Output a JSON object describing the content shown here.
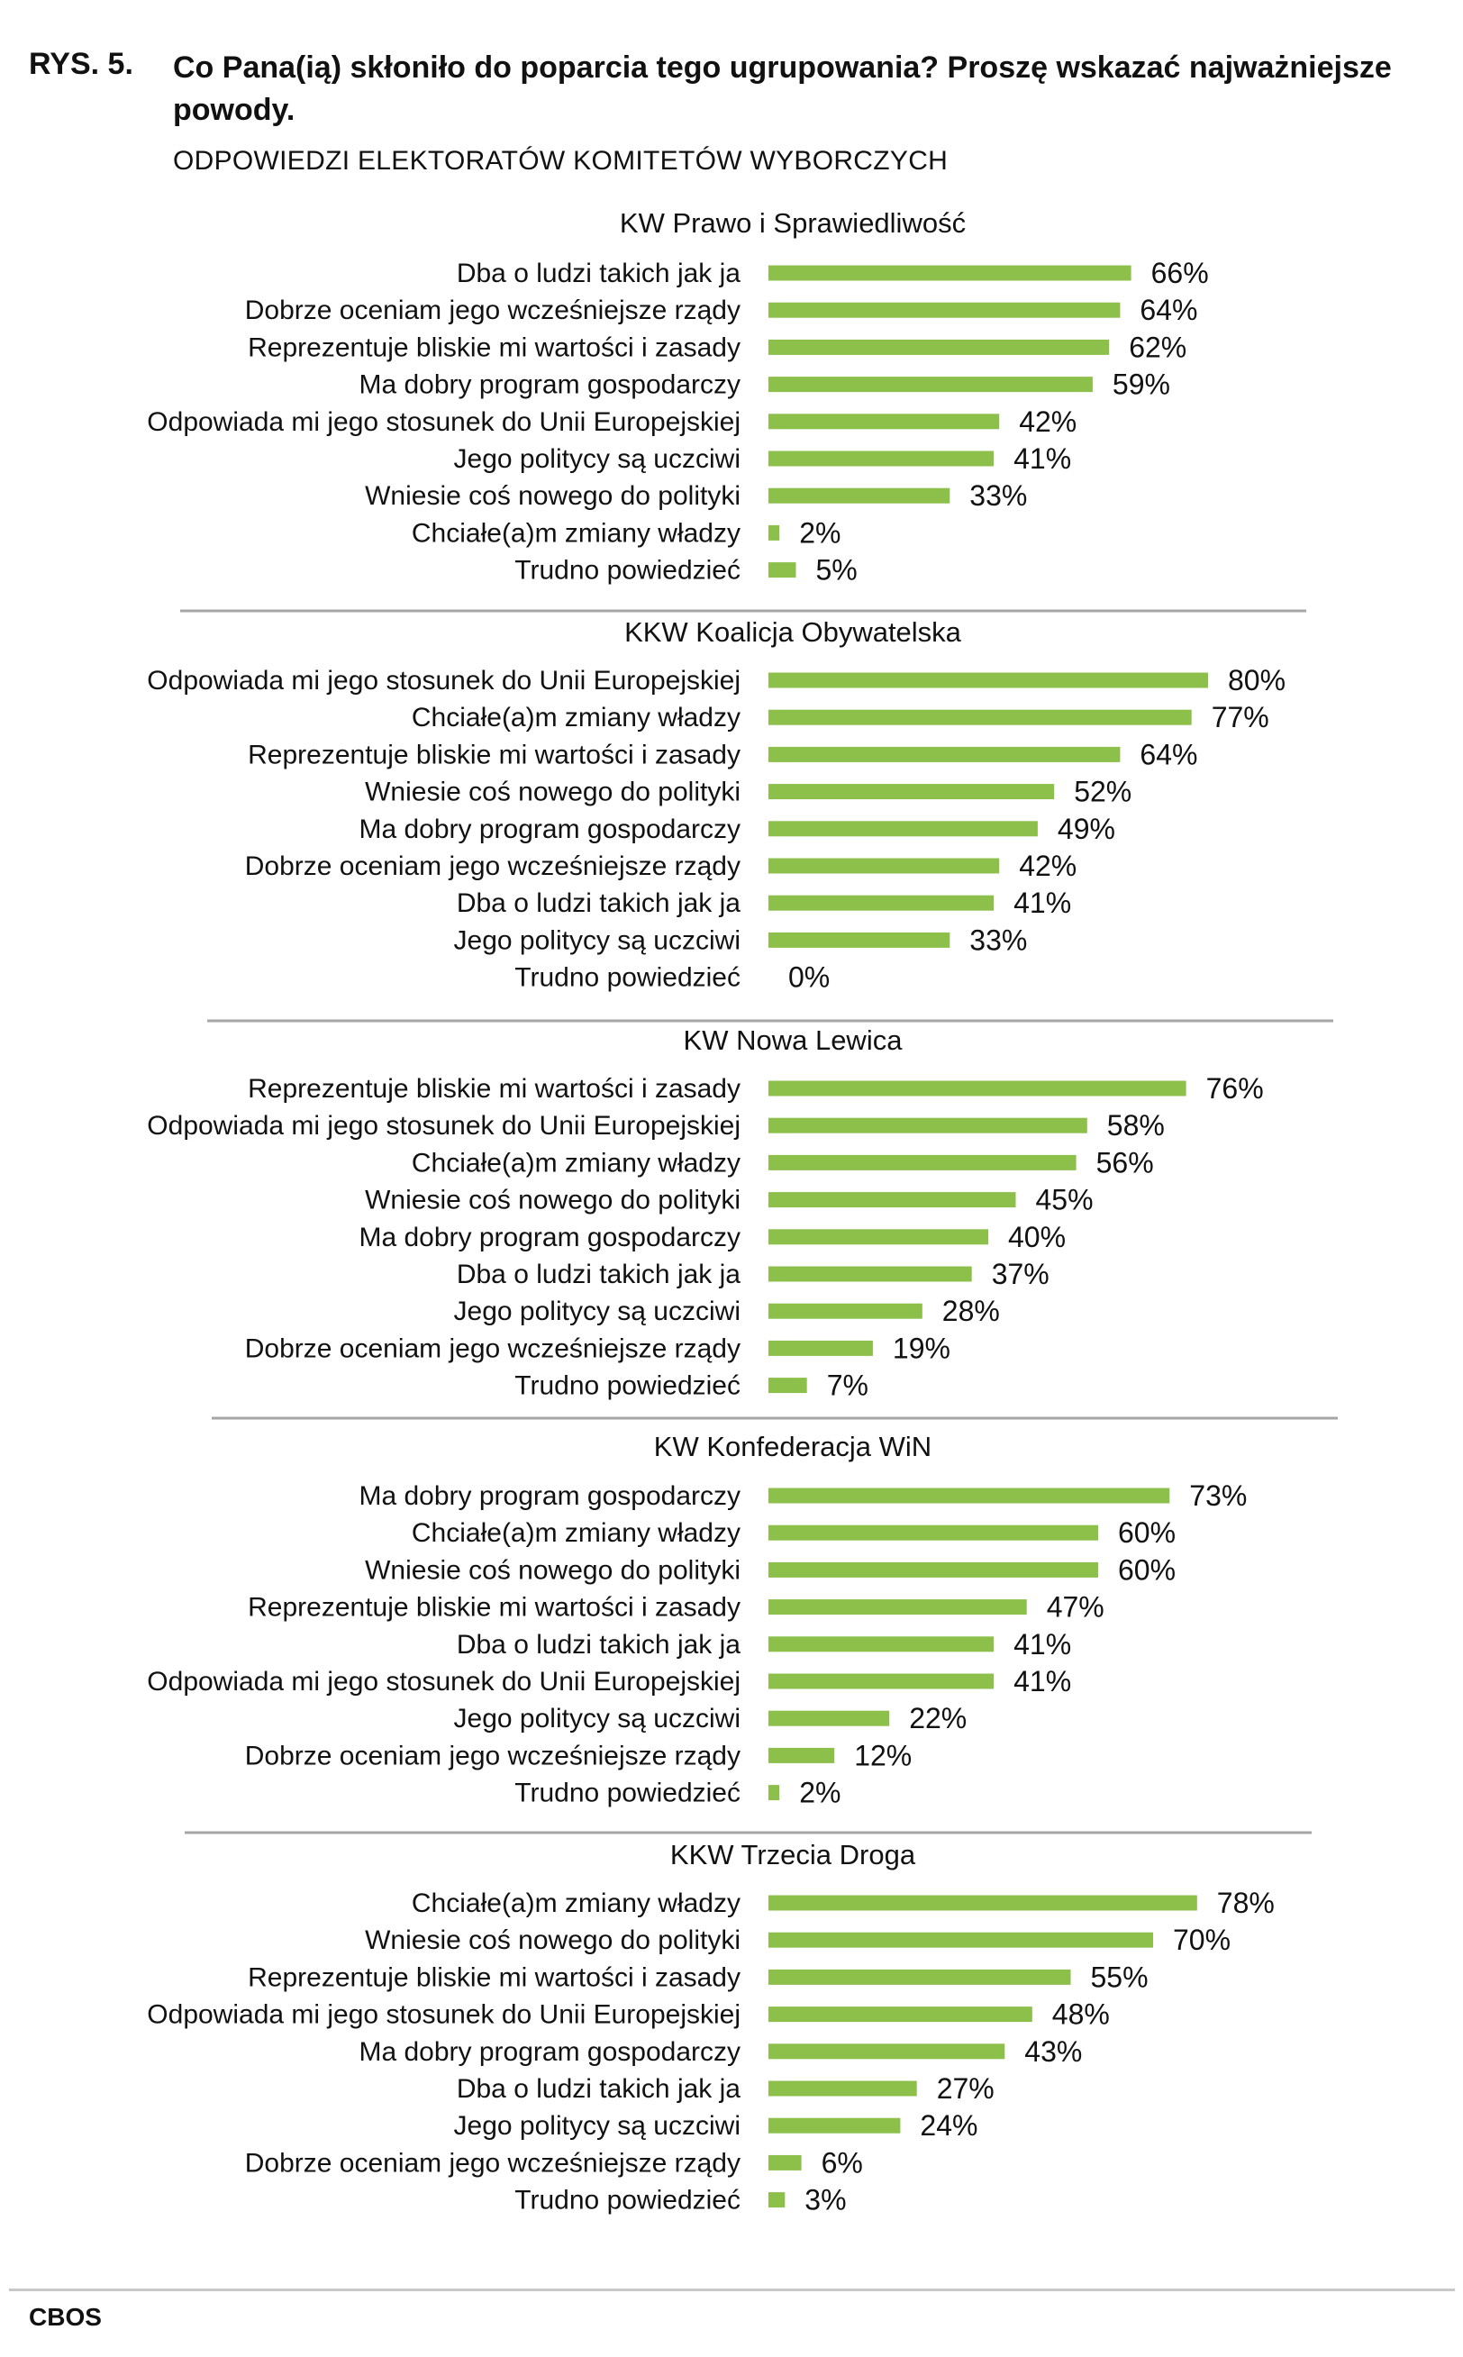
{
  "figure": {
    "number": "RYS. 5.",
    "title": "Co Pana(ią) skłoniło do poparcia tego ugrupowania? Proszę wskazać najważniejsze powody.",
    "subtitle": "ODPOWIEDZI ELEKTORATÓW KOMITETÓW WYBORCZYCH",
    "source": "CBOS"
  },
  "colors": {
    "bar": "#8cc04b",
    "divider": "#a6a6a6",
    "text": "#111111"
  },
  "chart_data": [
    {
      "type": "bar",
      "orientation": "horizontal",
      "title": "KW Prawo i Sprawiedliwość",
      "categories": [
        "Dba o ludzi takich jak ja",
        "Dobrze oceniam jego wcześniejsze rządy",
        "Reprezentuje bliskie mi wartości i zasady",
        "Ma dobry program gospodarczy",
        "Odpowiada mi jego stosunek do Unii Europejskiej",
        "Jego politycy są uczciwi",
        "Wniesie coś nowego do polityki",
        "Chciałe(a)m zmiany władzy",
        "Trudno powiedzieć"
      ],
      "values": [
        66,
        64,
        62,
        59,
        42,
        41,
        33,
        2,
        5
      ],
      "labels": [
        "66%",
        "64%",
        "62%",
        "59%",
        "42%",
        "41%",
        "33%",
        "2%",
        "5%"
      ],
      "unit": "%"
    },
    {
      "type": "bar",
      "orientation": "horizontal",
      "title": "KKW Koalicja Obywatelska",
      "categories": [
        "Odpowiada mi jego stosunek do Unii Europejskiej",
        "Chciałe(a)m zmiany władzy",
        "Reprezentuje bliskie mi wartości i zasady",
        "Wniesie coś nowego do polityki",
        "Ma dobry program gospodarczy",
        "Dobrze oceniam jego wcześniejsze rządy",
        "Dba o ludzi takich jak ja",
        "Jego politycy są uczciwi",
        "Trudno powiedzieć"
      ],
      "values": [
        80,
        77,
        64,
        52,
        49,
        42,
        41,
        33,
        0
      ],
      "labels": [
        "80%",
        "77%",
        "64%",
        "52%",
        "49%",
        "42%",
        "41%",
        "33%",
        "0%"
      ],
      "unit": "%"
    },
    {
      "type": "bar",
      "orientation": "horizontal",
      "title": "KW Nowa Lewica",
      "categories": [
        "Reprezentuje bliskie mi wartości i zasady",
        "Odpowiada mi jego stosunek do Unii Europejskiej",
        "Chciałe(a)m zmiany władzy",
        "Wniesie coś nowego do polityki",
        "Ma dobry program gospodarczy",
        "Dba o ludzi takich jak ja",
        "Jego politycy są uczciwi",
        "Dobrze oceniam jego wcześniejsze rządy",
        "Trudno powiedzieć"
      ],
      "values": [
        76,
        58,
        56,
        45,
        40,
        37,
        28,
        19,
        7
      ],
      "labels": [
        "76%",
        "58%",
        "56%",
        "45%",
        "40%",
        "37%",
        "28%",
        "19%",
        "7%"
      ],
      "unit": "%"
    },
    {
      "type": "bar",
      "orientation": "horizontal",
      "title": "KW Konfederacja WiN",
      "categories": [
        "Ma dobry program gospodarczy",
        "Chciałe(a)m zmiany władzy",
        "Wniesie coś nowego do polityki",
        "Reprezentuje bliskie mi wartości i zasady",
        "Dba o ludzi takich jak ja",
        "Odpowiada mi jego stosunek do Unii Europejskiej",
        "Jego politycy są uczciwi",
        "Dobrze oceniam jego wcześniejsze rządy",
        "Trudno powiedzieć"
      ],
      "values": [
        73,
        60,
        60,
        47,
        41,
        41,
        22,
        12,
        2
      ],
      "labels": [
        "73%",
        "60%",
        "60%",
        "47%",
        "41%",
        "41%",
        "22%",
        "12%",
        "2%"
      ],
      "unit": "%"
    },
    {
      "type": "bar",
      "orientation": "horizontal",
      "title": "KKW Trzecia Droga",
      "categories": [
        "Chciałe(a)m zmiany władzy",
        "Wniesie coś nowego do polityki",
        "Reprezentuje bliskie mi wartości i zasady",
        "Odpowiada mi jego stosunek do Unii Europejskiej",
        "Ma dobry program gospodarczy",
        "Dba o ludzi takich jak ja",
        "Jego politycy są uczciwi",
        "Dobrze oceniam jego wcześniejsze rządy",
        "Trudno powiedzieć"
      ],
      "values": [
        78,
        70,
        55,
        48,
        43,
        27,
        24,
        6,
        3
      ],
      "labels": [
        "78%",
        "70%",
        "55%",
        "48%",
        "43%",
        "27%",
        "24%",
        "6%",
        "3%"
      ],
      "unit": "%"
    }
  ]
}
